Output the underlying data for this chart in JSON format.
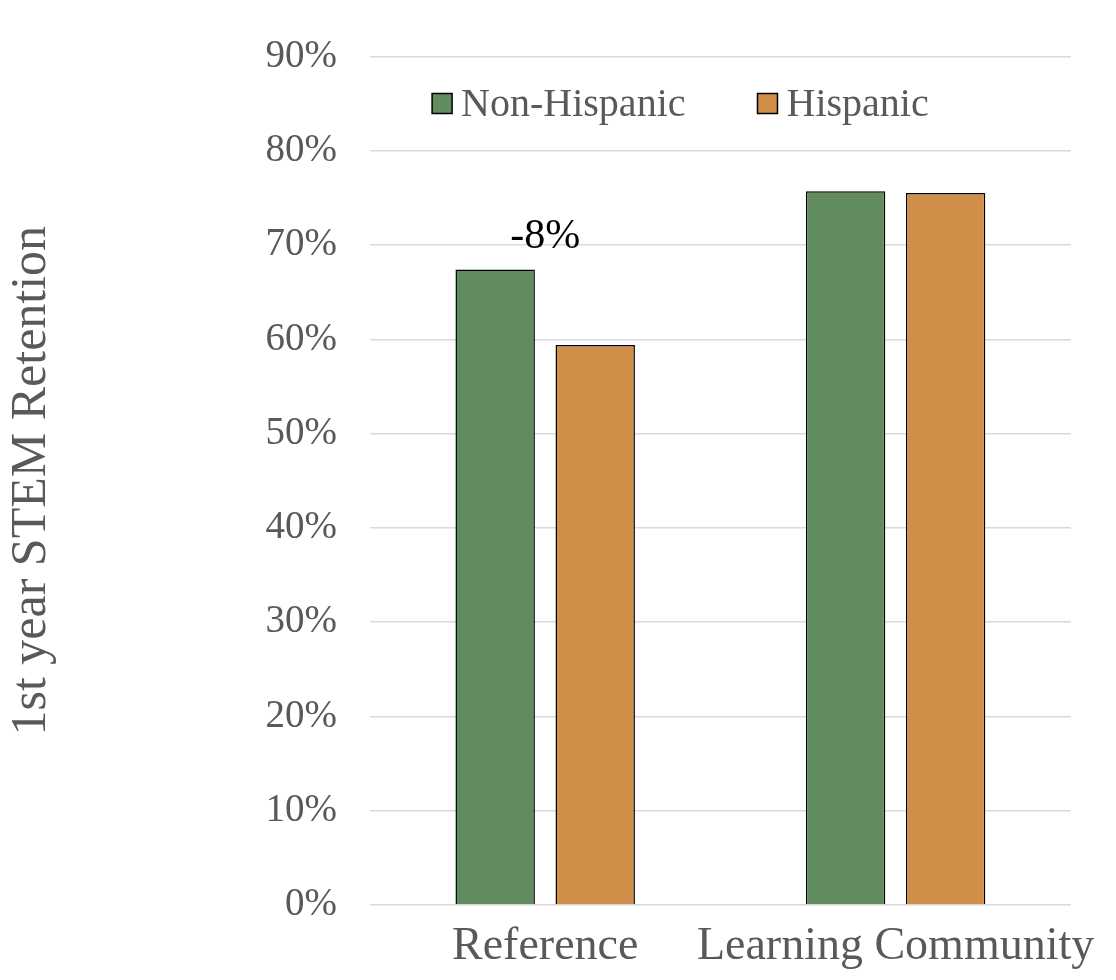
{
  "chart_data": {
    "type": "bar",
    "ylabel": "1st year STEM Retention",
    "categories": [
      "Reference",
      "Learning Community"
    ],
    "series": [
      {
        "name": "Non-Hispanic",
        "color": "#618c5f",
        "values": [
          67.4,
          75.7
        ]
      },
      {
        "name": "Hispanic",
        "color": "#d08e49",
        "values": [
          59.4,
          75.5
        ]
      }
    ],
    "ylim": [
      0,
      90
    ],
    "yticks": [
      {
        "value": 0,
        "label": "0%"
      },
      {
        "value": 10,
        "label": "10%"
      },
      {
        "value": 20,
        "label": "20%"
      },
      {
        "value": 30,
        "label": "30%"
      },
      {
        "value": 40,
        "label": "40%"
      },
      {
        "value": 50,
        "label": "50%"
      },
      {
        "value": 60,
        "label": "60%"
      },
      {
        "value": 70,
        "label": "70%"
      },
      {
        "value": 80,
        "label": "80%"
      },
      {
        "value": 90,
        "label": "90%"
      }
    ],
    "grid": "y",
    "legend": "top",
    "annotations": [
      "-8%"
    ]
  }
}
